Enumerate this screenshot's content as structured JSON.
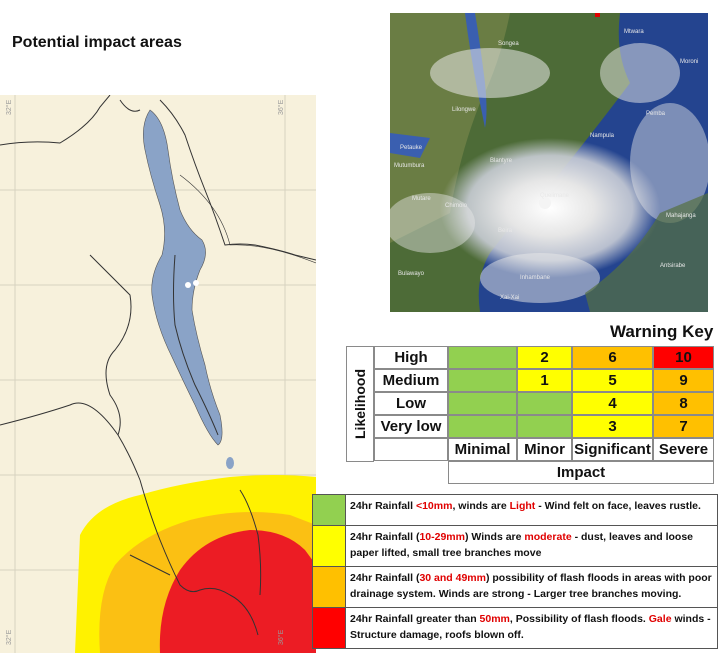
{
  "title": "Potential impact areas",
  "map": {
    "coords": {
      "left_top": "32°E",
      "right_top": "36°E",
      "left_bottom": "32°E",
      "right_bottom": "36°E"
    },
    "colors": {
      "land": "#f7f1dc",
      "lake": "#8aa3c7",
      "yellow": "#fff200",
      "orange": "#fbc013",
      "red": "#ec1c24"
    }
  },
  "satellite": {
    "labels": [
      "Songea",
      "Mtwara",
      "Moroni",
      "Pemba",
      "Lilongwe",
      "Nampula",
      "Petauke",
      "Blantyre",
      "Quelimane",
      "Mutare",
      "Chimoio",
      "Beira",
      "Mutumbura",
      "Inhambane",
      "Antsirabe",
      "Mahajanga",
      "Bulawayo",
      "Xai-Xai"
    ]
  },
  "warning_key": {
    "title": "Warning Key",
    "likelihood_label": "Likelihood",
    "impact_label": "Impact",
    "rows": [
      "High",
      "Medium",
      "Low",
      "Very low"
    ],
    "columns": [
      "Minimal",
      "Minor",
      "Significant",
      "Severe"
    ],
    "matrix": [
      [
        {
          "v": "",
          "c": "#92d050"
        },
        {
          "v": "2",
          "c": "#ffff00"
        },
        {
          "v": "6",
          "c": "#ffc000"
        },
        {
          "v": "10",
          "c": "#ff0000"
        }
      ],
      [
        {
          "v": "",
          "c": "#92d050"
        },
        {
          "v": "1",
          "c": "#ffff00"
        },
        {
          "v": "5",
          "c": "#ffff00"
        },
        {
          "v": "9",
          "c": "#ffc000"
        }
      ],
      [
        {
          "v": "",
          "c": "#92d050"
        },
        {
          "v": "",
          "c": "#92d050"
        },
        {
          "v": "4",
          "c": "#ffff00"
        },
        {
          "v": "8",
          "c": "#ffc000"
        }
      ],
      [
        {
          "v": "",
          "c": "#92d050"
        },
        {
          "v": "",
          "c": "#92d050"
        },
        {
          "v": "3",
          "c": "#ffff00"
        },
        {
          "v": "7",
          "c": "#ffc000"
        }
      ]
    ]
  },
  "legend": [
    {
      "color": "#92d050",
      "parts": [
        [
          "24hr Rainfall ",
          false
        ],
        [
          "<10mm",
          true
        ],
        [
          ", winds are ",
          false
        ],
        [
          "Light",
          true
        ],
        [
          " - Wind felt on face, leaves rustle.",
          false
        ]
      ]
    },
    {
      "color": "#ffff00",
      "parts": [
        [
          "24hr Rainfall (",
          false
        ],
        [
          "10-29mm",
          true
        ],
        [
          ") Winds are ",
          false
        ],
        [
          "moderate",
          true
        ],
        [
          " - dust, leaves and loose paper lifted, small tree branches move",
          false
        ]
      ]
    },
    {
      "color": "#ffc000",
      "parts": [
        [
          "24hr Rainfall (",
          false
        ],
        [
          "30 and 49mm",
          true
        ],
        [
          ") possibility of flash floods in areas with poor drainage system.  Winds are strong - Larger tree branches moving.",
          false
        ]
      ]
    },
    {
      "color": "#ff0000",
      "parts": [
        [
          "24hr Rainfall greater than ",
          false
        ],
        [
          "50mm",
          true
        ],
        [
          ", Possibility of flash floods. ",
          false
        ],
        [
          "Gale",
          true
        ],
        [
          " winds - Structure damage, roofs blown off.",
          false
        ]
      ]
    }
  ]
}
